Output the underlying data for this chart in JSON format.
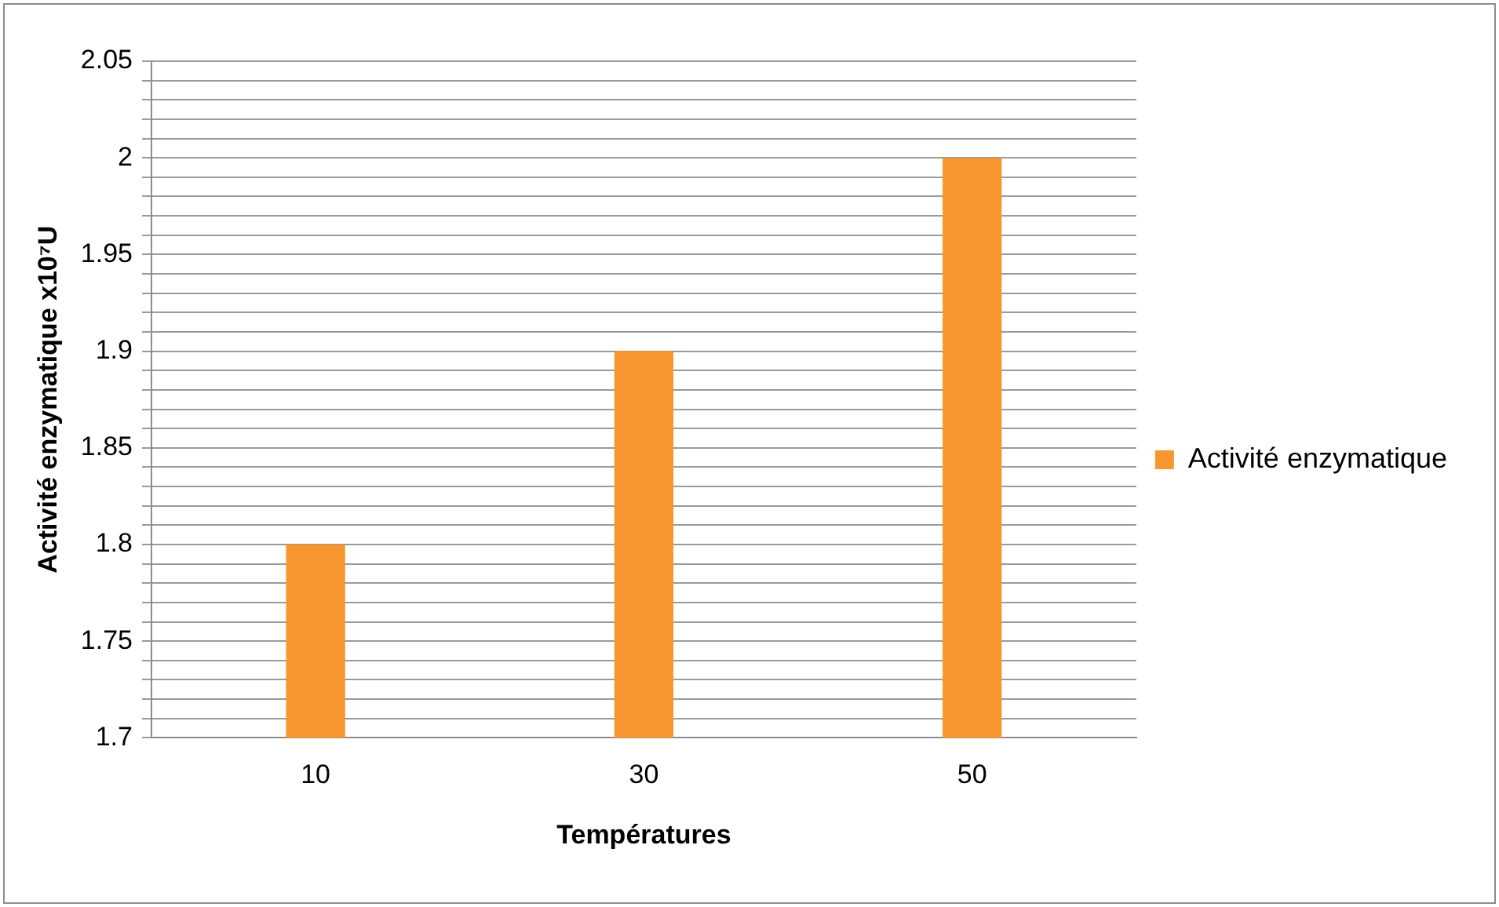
{
  "chart_data": {
    "type": "bar",
    "xlabel": "Températures",
    "ylabel": "Activité enzymatique x10⁷U",
    "categories": [
      "10",
      "30",
      "50"
    ],
    "series": [
      {
        "name": "Activité enzymatique",
        "color": "#f7962e",
        "values": [
          1.8,
          1.9,
          2.0
        ]
      }
    ],
    "ylim": [
      1.7,
      2.05
    ],
    "yticks": [
      {
        "value": 1.7,
        "label": "1.7"
      },
      {
        "value": 1.71,
        "label": null
      },
      {
        "value": 1.72,
        "label": null
      },
      {
        "value": 1.73,
        "label": null
      },
      {
        "value": 1.74,
        "label": null
      },
      {
        "value": 1.75,
        "label": "1.75"
      },
      {
        "value": 1.76,
        "label": null
      },
      {
        "value": 1.77,
        "label": null
      },
      {
        "value": 1.78,
        "label": null
      },
      {
        "value": 1.79,
        "label": null
      },
      {
        "value": 1.8,
        "label": "1.8"
      },
      {
        "value": 1.81,
        "label": null
      },
      {
        "value": 1.82,
        "label": null
      },
      {
        "value": 1.83,
        "label": null
      },
      {
        "value": 1.84,
        "label": null
      },
      {
        "value": 1.85,
        "label": "1.85"
      },
      {
        "value": 1.86,
        "label": null
      },
      {
        "value": 1.87,
        "label": null
      },
      {
        "value": 1.88,
        "label": null
      },
      {
        "value": 1.89,
        "label": null
      },
      {
        "value": 1.9,
        "label": "1.9"
      },
      {
        "value": 1.91,
        "label": null
      },
      {
        "value": 1.92,
        "label": null
      },
      {
        "value": 1.93,
        "label": null
      },
      {
        "value": 1.94,
        "label": null
      },
      {
        "value": 1.95,
        "label": "1.95"
      },
      {
        "value": 1.96,
        "label": null
      },
      {
        "value": 1.97,
        "label": null
      },
      {
        "value": 1.98,
        "label": null
      },
      {
        "value": 1.99,
        "label": null
      },
      {
        "value": 2,
        "label": "2"
      },
      {
        "value": 2.01,
        "label": null
      },
      {
        "value": 2.02,
        "label": null
      },
      {
        "value": 2.03,
        "label": null
      },
      {
        "value": 2.04,
        "label": null
      },
      {
        "value": 2.05,
        "label": "2.05"
      }
    ],
    "grid": "y",
    "legend": "right"
  }
}
